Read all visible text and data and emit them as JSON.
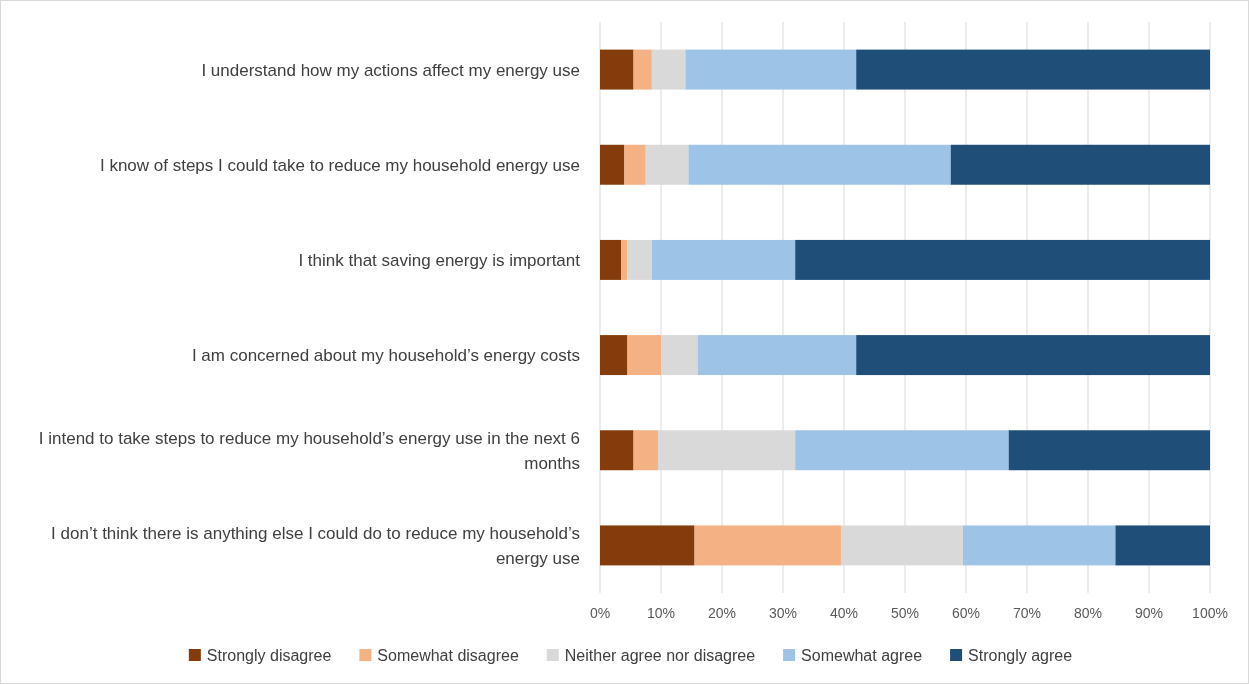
{
  "chart_data": {
    "type": "bar",
    "orientation": "horizontal",
    "stacked": true,
    "categories": [
      "I understand how my actions affect my energy use",
      "I know of steps I could take to reduce my household energy use",
      "I think that saving energy is important",
      "I am concerned about my household’s energy costs",
      "I intend to take steps to reduce my household’s energy use in the next 6 months",
      "I don’t think there is anything else I could do to reduce my household’s energy use"
    ],
    "series": [
      {
        "name": "Strongly disagree",
        "color": "#843c0c",
        "values": [
          5.5,
          4,
          3.5,
          4.5,
          5.5,
          15.5
        ]
      },
      {
        "name": "Somewhat disagree",
        "color": "#f4b183",
        "values": [
          3,
          3.5,
          1,
          5.5,
          4,
          24
        ]
      },
      {
        "name": "Neither agree nor disagree",
        "color": "#d9d9d9",
        "values": [
          5.5,
          7,
          4,
          6,
          22.5,
          20
        ]
      },
      {
        "name": "Somewhat agree",
        "color": "#9dc3e6",
        "values": [
          28,
          43,
          23.5,
          26,
          35,
          25
        ]
      },
      {
        "name": "Strongly agree",
        "color": "#1f4e79",
        "values": [
          58,
          42.5,
          68,
          58,
          33,
          15.5
        ]
      }
    ],
    "xlim": [
      0,
      100
    ],
    "xticks": [
      {
        "value": 0,
        "label": "0%"
      },
      {
        "value": 10,
        "label": "10%"
      },
      {
        "value": 20,
        "label": "20%"
      },
      {
        "value": 30,
        "label": "30%"
      },
      {
        "value": 40,
        "label": "40%"
      },
      {
        "value": 50,
        "label": "50%"
      },
      {
        "value": 60,
        "label": "60%"
      },
      {
        "value": 70,
        "label": "70%"
      },
      {
        "value": 80,
        "label": "80%"
      },
      {
        "value": 90,
        "label": "90%"
      },
      {
        "value": 100,
        "label": "100%"
      }
    ],
    "grid": "x",
    "legend": "bottom"
  }
}
